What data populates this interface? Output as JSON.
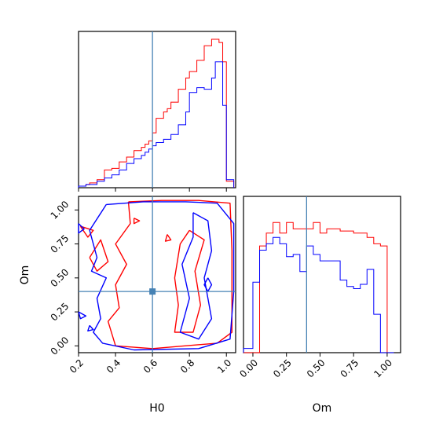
{
  "chart_data": {
    "type": "corner",
    "parameters": [
      "H0",
      "Om"
    ],
    "truth": {
      "H0": 0.6,
      "Om": 0.4
    },
    "series_colors": {
      "red": "#ff0000",
      "blue": "#0000ff",
      "truth": "#4682b4"
    },
    "panels": [
      {
        "id": "hist-H0",
        "type": "histogram-step",
        "xlim": [
          0.2,
          1.05
        ],
        "bin_edges": [
          0.2,
          0.22,
          0.24,
          0.26,
          0.28,
          0.3,
          0.32,
          0.34,
          0.36,
          0.38,
          0.4,
          0.42,
          0.44,
          0.46,
          0.48,
          0.5,
          0.52,
          0.54,
          0.56,
          0.58,
          0.6,
          0.62,
          0.64,
          0.66,
          0.68,
          0.7,
          0.72,
          0.74,
          0.76,
          0.78,
          0.8,
          0.82,
          0.84,
          0.86,
          0.88,
          0.9,
          0.92,
          0.94,
          0.96,
          0.98,
          1.0,
          1.02,
          1.04
        ],
        "series": [
          {
            "color": "red",
            "counts": [
              1,
              1,
              2,
              3,
              3,
              5,
              5,
              11,
              11,
              12,
              12,
              16,
              16,
              19,
              19,
              23,
              23,
              25,
              27,
              29,
              34,
              43,
              43,
              47,
              49,
              53,
              53,
              61,
              61,
              68,
              72,
              72,
              79,
              79,
              88,
              88,
              92,
              92,
              90,
              78,
              4,
              4
            ]
          },
          {
            "color": "blue",
            "counts": [
              1,
              1,
              2,
              2,
              2,
              4,
              4,
              6,
              6,
              8,
              8,
              11,
              11,
              15,
              15,
              18,
              18,
              20,
              22,
              24,
              26,
              28,
              28,
              30,
              30,
              33,
              33,
              39,
              39,
              47,
              59,
              59,
              62,
              62,
              61,
              61,
              68,
              78,
              78,
              51,
              5,
              5
            ]
          }
        ]
      },
      {
        "id": "hist-Om",
        "type": "histogram-step",
        "xlim": [
          -0.07,
          1.1
        ],
        "xticks": [
          "0.00",
          "0.25",
          "0.50",
          "0.75",
          "1.00"
        ],
        "xlabel": "Om",
        "bin_edges": [
          -0.07,
          0.0,
          0.05,
          0.1,
          0.15,
          0.2,
          0.25,
          0.3,
          0.35,
          0.4,
          0.45,
          0.5,
          0.55,
          0.6,
          0.65,
          0.7,
          0.75,
          0.8,
          0.85,
          0.9,
          0.95,
          1.0,
          1.05
        ],
        "series": [
          {
            "color": "red",
            "counts": [
              0,
              0,
              50,
              56,
              61,
              56,
              61,
              58,
              58,
              58,
              61,
              56,
              58,
              58,
              57,
              57,
              56,
              56,
              54,
              51,
              50,
              0
            ]
          },
          {
            "color": "blue",
            "counts": [
              2,
              33,
              48,
              51,
              54,
              51,
              45,
              46,
              38,
              50,
              46,
              43,
              43,
              43,
              34,
              31,
              30,
              32,
              39,
              18,
              0,
              0
            ]
          }
        ]
      },
      {
        "id": "contour-H0-Om",
        "type": "contour",
        "xlim": [
          0.2,
          1.05
        ],
        "ylim": [
          -0.05,
          1.1
        ],
        "xticks": [
          "0.2",
          "0.4",
          "0.6",
          "0.8",
          "1.0"
        ],
        "yticks": [
          "0.00",
          "0.25",
          "0.50",
          "0.75",
          "1.00"
        ],
        "xlabel": "H0",
        "ylabel": "Om",
        "contours": [
          {
            "color": "red",
            "points": [
              [
                0.47,
                1.06
              ],
              [
                0.65,
                1.07
              ],
              [
                0.85,
                1.07
              ],
              [
                1.02,
                1.05
              ],
              [
                1.03,
                0.7
              ],
              [
                1.03,
                0.1
              ],
              [
                0.95,
                0.02
              ],
              [
                0.6,
                -0.02
              ],
              [
                0.4,
                0.0
              ],
              [
                0.36,
                0.18
              ],
              [
                0.42,
                0.28
              ],
              [
                0.4,
                0.45
              ],
              [
                0.46,
                0.6
              ],
              [
                0.4,
                0.75
              ],
              [
                0.48,
                0.9
              ],
              [
                0.47,
                1.06
              ]
            ]
          },
          {
            "color": "red",
            "points": [
              [
                0.8,
                0.85
              ],
              [
                0.88,
                0.78
              ],
              [
                0.83,
                0.55
              ],
              [
                0.86,
                0.3
              ],
              [
                0.82,
                0.1
              ],
              [
                0.72,
                0.1
              ],
              [
                0.74,
                0.3
              ],
              [
                0.72,
                0.5
              ],
              [
                0.75,
                0.75
              ],
              [
                0.8,
                0.85
              ]
            ]
          },
          {
            "color": "red",
            "points": [
              [
                0.26,
                0.65
              ],
              [
                0.32,
                0.78
              ],
              [
                0.36,
                0.62
              ],
              [
                0.3,
                0.55
              ],
              [
                0.26,
                0.65
              ]
            ]
          },
          {
            "color": "red",
            "points": [
              [
                0.21,
                0.88
              ],
              [
                0.28,
                0.85
              ],
              [
                0.25,
                0.8
              ],
              [
                0.21,
                0.88
              ]
            ]
          },
          {
            "color": "red",
            "points": [
              [
                0.68,
                0.82
              ],
              [
                0.7,
                0.78
              ],
              [
                0.67,
                0.77
              ],
              [
                0.68,
                0.82
              ]
            ]
          },
          {
            "color": "red",
            "points": [
              [
                0.5,
                0.94
              ],
              [
                0.53,
                0.92
              ],
              [
                0.5,
                0.9
              ],
              [
                0.5,
                0.94
              ]
            ]
          },
          {
            "color": "blue",
            "points": [
              [
                0.35,
                1.04
              ],
              [
                0.55,
                1.06
              ],
              [
                0.78,
                1.06
              ],
              [
                0.95,
                1.05
              ],
              [
                1.04,
                0.9
              ],
              [
                1.04,
                0.4
              ],
              [
                1.02,
                0.05
              ],
              [
                0.85,
                -0.02
              ],
              [
                0.5,
                -0.03
              ],
              [
                0.33,
                0.02
              ],
              [
                0.28,
                0.1
              ],
              [
                0.32,
                0.2
              ],
              [
                0.3,
                0.35
              ],
              [
                0.35,
                0.5
              ],
              [
                0.27,
                0.55
              ],
              [
                0.3,
                0.65
              ],
              [
                0.26,
                0.85
              ],
              [
                0.35,
                1.04
              ]
            ]
          },
          {
            "color": "blue",
            "points": [
              [
                0.82,
                0.98
              ],
              [
                0.9,
                0.92
              ],
              [
                0.92,
                0.7
              ],
              [
                0.88,
                0.5
              ],
              [
                0.92,
                0.2
              ],
              [
                0.85,
                0.05
              ],
              [
                0.75,
                0.1
              ],
              [
                0.8,
                0.35
              ],
              [
                0.76,
                0.6
              ],
              [
                0.82,
                0.8
              ],
              [
                0.82,
                0.98
              ]
            ]
          },
          {
            "color": "blue",
            "points": [
              [
                0.2,
                0.25
              ],
              [
                0.24,
                0.22
              ],
              [
                0.21,
                0.2
              ],
              [
                0.2,
                0.25
              ]
            ]
          },
          {
            "color": "blue",
            "points": [
              [
                0.26,
                0.15
              ],
              [
                0.28,
                0.12
              ],
              [
                0.25,
                0.11
              ],
              [
                0.26,
                0.15
              ]
            ]
          },
          {
            "color": "blue",
            "points": [
              [
                0.2,
                0.9
              ],
              [
                0.23,
                0.86
              ],
              [
                0.2,
                0.83
              ],
              [
                0.2,
                0.9
              ]
            ]
          },
          {
            "color": "blue",
            "points": [
              [
                0.9,
                0.5
              ],
              [
                0.92,
                0.45
              ],
              [
                0.9,
                0.4
              ],
              [
                0.88,
                0.45
              ],
              [
                0.9,
                0.5
              ]
            ]
          }
        ]
      }
    ]
  }
}
